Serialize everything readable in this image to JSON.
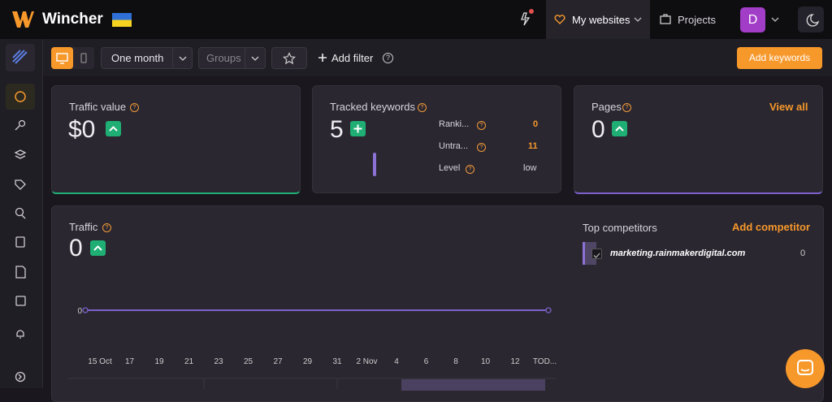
{
  "header": {
    "brand": "Wincher",
    "nav": [
      "My websites",
      "Projects"
    ],
    "avatar": "D"
  },
  "toolbar": {
    "period": "One month",
    "groups": "Groups",
    "add_filter": "Add filter",
    "add_keywords": "Add keywords"
  },
  "cards": [
    {
      "title": "Traffic value",
      "value": "$0"
    },
    {
      "title": "Tracked keywords",
      "value": 5,
      "stats": [
        {
          "label": "Ranki...",
          "value": 0
        },
        {
          "label": "Untra...",
          "value": 11
        },
        {
          "label": "Level",
          "value": "low"
        }
      ]
    },
    {
      "title": "Pages",
      "value": 0,
      "link": "View all"
    }
  ],
  "traffic": {
    "title": "Traffic",
    "value": 0,
    "chart": {
      "type": "line",
      "categories": [
        "15 Oct",
        "17",
        "19",
        "21",
        "23",
        "25",
        "27",
        "29",
        "31",
        "2 Nov",
        "4",
        "6",
        "8",
        "10",
        "12",
        "TOD..."
      ],
      "values": [
        0,
        0,
        0,
        0,
        0,
        0,
        0,
        0,
        0,
        0,
        0,
        0,
        0,
        0,
        0,
        0
      ],
      "yticks": [
        0
      ],
      "color": "#7b61c9"
    },
    "competitors": {
      "title": "Top competitors",
      "action": "Add competitor",
      "rows": [
        {
          "domain": "marketing.rainmakerdigital.com",
          "value": 0
        }
      ]
    }
  }
}
